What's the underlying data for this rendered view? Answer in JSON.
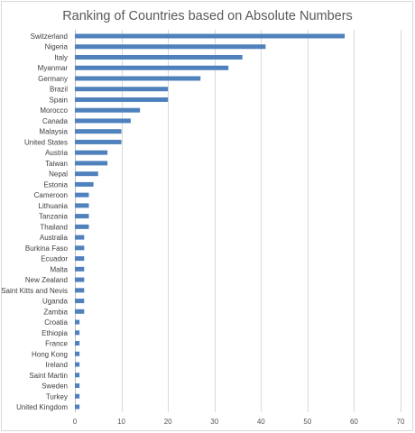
{
  "chart_data": {
    "type": "bar",
    "orientation": "horizontal",
    "title": "Ranking of Countries based on Absolute Numbers",
    "categories": [
      "Switzerland",
      "Nigeria",
      "Italy",
      "Myanmar",
      "Germany",
      "Brazil",
      "Spain",
      "Morocco",
      "Canada",
      "Malaysia",
      "United States",
      "Austria",
      "Taiwan",
      "Nepal",
      "Estonia",
      "Cameroon",
      "Lithuania",
      "Tanzania",
      "Thailand",
      "Australia",
      "Burkina Faso",
      "Ecuador",
      "Malta",
      "New Zealand",
      "Saint Kitts and Nevis",
      "Uganda",
      "Zambia",
      "Croatia",
      "Ethiopia",
      "France",
      "Hong Kong",
      "Ireland",
      "Saint Martin",
      "Sweden",
      "Turkey",
      "United Kingdom"
    ],
    "values": [
      58,
      41,
      36,
      33,
      27,
      20,
      20,
      14,
      12,
      10,
      10,
      7,
      7,
      5,
      4,
      3,
      3,
      3,
      3,
      2,
      2,
      2,
      2,
      2,
      2,
      2,
      2,
      1,
      1,
      1,
      1,
      1,
      1,
      1,
      1,
      1
    ],
    "xlim": [
      0,
      70
    ],
    "xticks": [
      0,
      10,
      20,
      30,
      40,
      50,
      60,
      70
    ],
    "grid": true,
    "legend": "none",
    "bar_color": "#4f81bd"
  }
}
